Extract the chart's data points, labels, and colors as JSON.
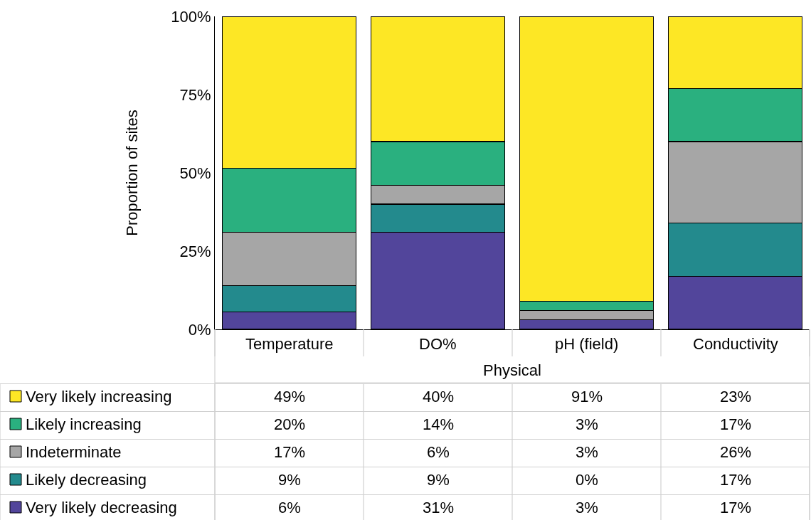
{
  "chart_data": {
    "type": "bar",
    "stacked": true,
    "ylabel": "Proportion of sites",
    "xlabel": "Physical",
    "categories": [
      "Temperature",
      "DO%",
      "pH (field)",
      "Conductivity"
    ],
    "ylim": [
      0,
      100
    ],
    "yticks": [
      {
        "value": 0,
        "label": "0%"
      },
      {
        "value": 25,
        "label": "25%"
      },
      {
        "value": 50,
        "label": "50%"
      },
      {
        "value": 75,
        "label": "75%"
      },
      {
        "value": 100,
        "label": "100%"
      }
    ],
    "legend": "bottom left",
    "series": [
      {
        "name": "Very likely decreasing",
        "color": "#52459b",
        "values": [
          5.5,
          31,
          3,
          17
        ],
        "value_labels": [
          "6%",
          "31%",
          "3%",
          "17%"
        ]
      },
      {
        "name": "Likely decreasing",
        "color": "#238a8d",
        "values": [
          8.5,
          9,
          0,
          17
        ],
        "value_labels": [
          "9%",
          "9%",
          "0%",
          "17%"
        ]
      },
      {
        "name": "Indeterminate",
        "color": "#a6a6a6",
        "values": [
          17,
          6,
          3,
          26
        ],
        "value_labels": [
          "17%",
          "6%",
          "3%",
          "26%"
        ]
      },
      {
        "name": "Likely increasing",
        "color": "#2ab07f",
        "values": [
          20.5,
          14,
          3,
          17
        ],
        "value_labels": [
          "20%",
          "14%",
          "3%",
          "17%"
        ]
      },
      {
        "name": "Very likely increasing",
        "color": "#fde725",
        "values": [
          48.5,
          40,
          91,
          23
        ],
        "value_labels": [
          "49%",
          "40%",
          "91%",
          "23%"
        ]
      }
    ]
  }
}
